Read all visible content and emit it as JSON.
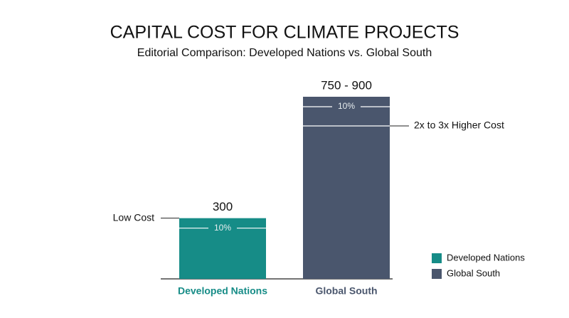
{
  "chart_data": {
    "type": "bar",
    "title": "CAPITAL COST FOR CLIMATE PROJECTS",
    "subtitle": "Editorial Comparison: Developed Nations vs. Global South",
    "categories": [
      "Developed Nations",
      "Global South"
    ],
    "values": [
      300,
      900
    ],
    "value_labels": [
      "300",
      "750 - 900"
    ],
    "band_labels": [
      "10%",
      "10%"
    ],
    "colors": [
      "#168c87",
      "#4a566d"
    ],
    "label_colors": [
      "#168c87",
      "#4a566d"
    ],
    "annotations": [
      "Low Cost",
      "2x to 3x Higher Cost"
    ],
    "ylim": [
      0,
      900
    ],
    "legend": "bottom-right"
  }
}
